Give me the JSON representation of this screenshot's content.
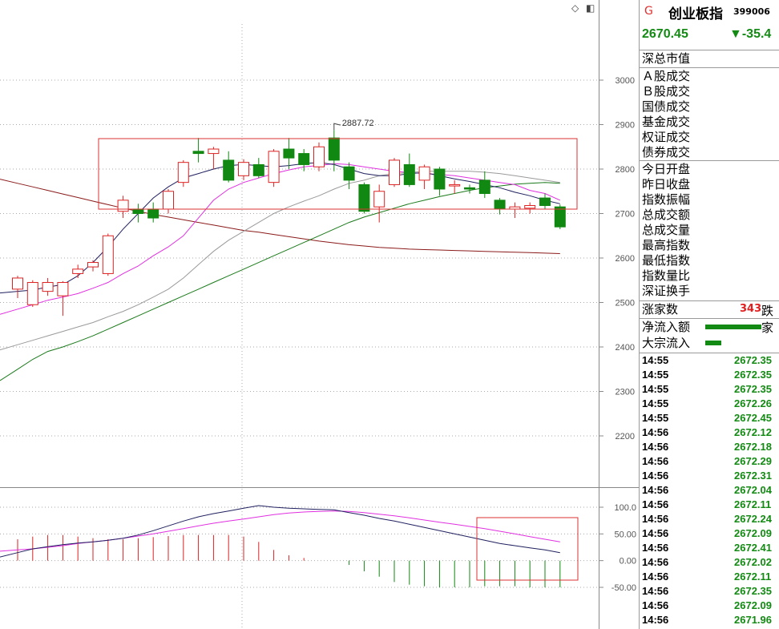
{
  "header": {
    "market_flag": "G",
    "index_name": "创业板指",
    "index_code": "399006",
    "price": "2670.45",
    "change": "▼-35.4"
  },
  "info_labels": {
    "group1": [
      "深总市值"
    ],
    "group2": [
      "Ａ股成交",
      "Ｂ股成交",
      "国债成交",
      "基金成交",
      "权证成交",
      "债券成交"
    ],
    "group3": [
      "今日开盘",
      "昨日收盘",
      "指数振幅",
      "总成交额",
      "总成交量",
      "最高指数",
      "最低指数",
      "指数量比",
      "深证换手"
    ]
  },
  "breadth": {
    "up_label": "涨家数",
    "up_count": "343",
    "down_label": "跌家"
  },
  "flows": [
    {
      "label": "净流入额",
      "bar": 0.78
    },
    {
      "label": "大宗流入",
      "bar": 0.22
    }
  ],
  "ticks": [
    {
      "time": "14:55",
      "price": "2672.35"
    },
    {
      "time": "14:55",
      "price": "2672.35"
    },
    {
      "time": "14:55",
      "price": "2672.35"
    },
    {
      "time": "14:55",
      "price": "2672.26"
    },
    {
      "time": "14:55",
      "price": "2672.45"
    },
    {
      "time": "14:56",
      "price": "2672.12"
    },
    {
      "time": "14:56",
      "price": "2672.18"
    },
    {
      "time": "14:56",
      "price": "2672.29"
    },
    {
      "time": "14:56",
      "price": "2672.31"
    },
    {
      "time": "14:56",
      "price": "2672.04"
    },
    {
      "time": "14:56",
      "price": "2672.11"
    },
    {
      "time": "14:56",
      "price": "2672.24"
    },
    {
      "time": "14:56",
      "price": "2672.09"
    },
    {
      "time": "14:56",
      "price": "2672.41"
    },
    {
      "time": "14:56",
      "price": "2672.02"
    },
    {
      "time": "14:56",
      "price": "2672.11"
    },
    {
      "time": "14:56",
      "price": "2672.35"
    },
    {
      "time": "14:56",
      "price": "2672.09"
    },
    {
      "time": "14:56",
      "price": "2671.96"
    }
  ],
  "colors": {
    "up": "#dd2222",
    "down": "#118811",
    "ma5": "#202060",
    "ma10": "#e030e0",
    "ma20": "#9a9a9a",
    "ma60": "#1a7a1a",
    "ma250": "#8b1a1a",
    "dif": "#202060",
    "dea": "#e030e0"
  },
  "chart_data": [
    {
      "type": "candlestick",
      "ylim": [
        2080,
        3080
      ],
      "y_ticks": [
        "3000",
        "2900",
        "2800",
        "2700",
        "2600",
        "2500",
        "2400",
        "2300",
        "2200"
      ],
      "high_annotation": "2887.72",
      "candles": [
        {
          "o": 2530,
          "h": 2560,
          "l": 2510,
          "c": 2555
        },
        {
          "o": 2495,
          "h": 2550,
          "l": 2490,
          "c": 2545
        },
        {
          "o": 2525,
          "h": 2555,
          "l": 2515,
          "c": 2545
        },
        {
          "o": 2515,
          "h": 2548,
          "l": 2470,
          "c": 2545
        },
        {
          "o": 2565,
          "h": 2585,
          "l": 2555,
          "c": 2575
        },
        {
          "o": 2580,
          "h": 2595,
          "l": 2570,
          "c": 2590
        },
        {
          "o": 2565,
          "h": 2655,
          "l": 2560,
          "c": 2650
        },
        {
          "o": 2705,
          "h": 2740,
          "l": 2690,
          "c": 2730
        },
        {
          "o": 2710,
          "h": 2722,
          "l": 2680,
          "c": 2700
        },
        {
          "o": 2710,
          "h": 2725,
          "l": 2680,
          "c": 2690
        },
        {
          "o": 2710,
          "h": 2755,
          "l": 2700,
          "c": 2750
        },
        {
          "o": 2770,
          "h": 2820,
          "l": 2760,
          "c": 2815
        },
        {
          "o": 2840,
          "h": 2870,
          "l": 2815,
          "c": 2835
        },
        {
          "o": 2835,
          "h": 2850,
          "l": 2800,
          "c": 2845
        },
        {
          "o": 2820,
          "h": 2840,
          "l": 2770,
          "c": 2775
        },
        {
          "o": 2785,
          "h": 2822,
          "l": 2775,
          "c": 2815
        },
        {
          "o": 2810,
          "h": 2825,
          "l": 2780,
          "c": 2785
        },
        {
          "o": 2770,
          "h": 2845,
          "l": 2760,
          "c": 2840
        },
        {
          "o": 2845,
          "h": 2870,
          "l": 2800,
          "c": 2825
        },
        {
          "o": 2835,
          "h": 2845,
          "l": 2795,
          "c": 2810
        },
        {
          "o": 2805,
          "h": 2860,
          "l": 2795,
          "c": 2850
        },
        {
          "o": 2870,
          "h": 2888,
          "l": 2795,
          "c": 2820
        },
        {
          "o": 2805,
          "h": 2815,
          "l": 2755,
          "c": 2775
        },
        {
          "o": 2765,
          "h": 2770,
          "l": 2700,
          "c": 2705
        },
        {
          "o": 2715,
          "h": 2765,
          "l": 2680,
          "c": 2750
        },
        {
          "o": 2765,
          "h": 2825,
          "l": 2760,
          "c": 2820
        },
        {
          "o": 2810,
          "h": 2835,
          "l": 2760,
          "c": 2765
        },
        {
          "o": 2775,
          "h": 2810,
          "l": 2755,
          "c": 2805
        },
        {
          "o": 2800,
          "h": 2805,
          "l": 2740,
          "c": 2755
        },
        {
          "o": 2762,
          "h": 2775,
          "l": 2745,
          "c": 2765
        },
        {
          "o": 2758,
          "h": 2765,
          "l": 2745,
          "c": 2755
        },
        {
          "o": 2775,
          "h": 2795,
          "l": 2735,
          "c": 2745
        },
        {
          "o": 2730,
          "h": 2735,
          "l": 2698,
          "c": 2710
        },
        {
          "o": 2710,
          "h": 2725,
          "l": 2690,
          "c": 2715
        },
        {
          "o": 2712,
          "h": 2725,
          "l": 2700,
          "c": 2718
        },
        {
          "o": 2735,
          "h": 2745,
          "l": 2710,
          "c": 2718
        },
        {
          "o": 2715,
          "h": 2720,
          "l": 2665,
          "c": 2670
        }
      ],
      "ma": {
        "ma5": [
          2525,
          2528,
          2535,
          2540,
          2560,
          2590,
          2625,
          2665,
          2700,
          2735,
          2760,
          2780,
          2790,
          2800,
          2808,
          2810,
          2808,
          2805,
          2808,
          2812,
          2815,
          2810,
          2800,
          2790,
          2785,
          2785,
          2790,
          2792,
          2785,
          2778,
          2772,
          2765,
          2758,
          2748,
          2740,
          2730,
          2722
        ],
        "ma10": [
          2485,
          2495,
          2505,
          2512,
          2520,
          2532,
          2545,
          2565,
          2582,
          2605,
          2625,
          2650,
          2690,
          2730,
          2755,
          2770,
          2780,
          2790,
          2798,
          2805,
          2808,
          2812,
          2810,
          2805,
          2800,
          2795,
          2792,
          2790,
          2788,
          2785,
          2780,
          2775,
          2770,
          2765,
          2752,
          2745,
          2730
        ],
        "ma20": [
          2405,
          2415,
          2425,
          2435,
          2445,
          2455,
          2468,
          2480,
          2495,
          2512,
          2530,
          2555,
          2585,
          2615,
          2640,
          2660,
          2680,
          2700,
          2715,
          2728,
          2740,
          2755,
          2768,
          2775,
          2785,
          2790,
          2792,
          2795,
          2795,
          2795,
          2795,
          2793,
          2790,
          2785,
          2780,
          2775,
          2770
        ],
        "ma60": [
          2350,
          2372,
          2390,
          2400,
          2412,
          2425,
          2440,
          2455,
          2470,
          2485,
          2500,
          2515,
          2530,
          2545,
          2560,
          2575,
          2590,
          2605,
          2620,
          2635,
          2650,
          2665,
          2680,
          2692,
          2702,
          2712,
          2722,
          2730,
          2738,
          2745,
          2752,
          2758,
          2762,
          2766,
          2768,
          2770,
          2768
        ],
        "ma250": [
          2768,
          2760,
          2752,
          2744,
          2736,
          2728,
          2720,
          2712,
          2705,
          2698,
          2692,
          2686,
          2680,
          2674,
          2668,
          2662,
          2658,
          2653,
          2648,
          2643,
          2638,
          2634,
          2630,
          2627,
          2624,
          2622,
          2620,
          2619,
          2618,
          2617,
          2616,
          2615,
          2614,
          2613,
          2612,
          2611,
          2610
        ]
      }
    },
    {
      "type": "macd",
      "ylim": [
        -80,
        130
      ],
      "y_ticks": [
        "100.0",
        "50.00",
        "0.00",
        "-50.00"
      ],
      "dif": [
        15,
        22,
        26,
        30,
        33,
        35,
        38,
        42,
        48,
        56,
        65,
        74,
        82,
        88,
        93,
        98,
        103,
        100,
        98,
        97,
        96,
        95,
        90,
        85,
        79,
        74,
        68,
        62,
        56,
        50,
        44,
        38,
        32,
        28,
        24,
        20,
        15
      ],
      "dea": [
        20,
        22,
        25,
        28,
        32,
        35,
        38,
        42,
        46,
        50,
        55,
        60,
        65,
        70,
        74,
        78,
        82,
        86,
        89,
        91,
        92,
        93,
        92,
        90,
        87,
        84,
        80,
        76,
        72,
        68,
        64,
        60,
        55,
        50,
        45,
        40,
        35
      ],
      "hist": [
        40,
        45,
        48,
        48,
        45,
        42,
        40,
        40,
        42,
        44,
        46,
        48,
        48,
        48,
        48,
        45,
        35,
        20,
        10,
        5,
        0,
        0,
        -8,
        -20,
        -30,
        -40,
        -45,
        -48,
        -50,
        -50,
        -50,
        -48,
        -48,
        -48,
        -50,
        -50,
        -50
      ]
    }
  ]
}
